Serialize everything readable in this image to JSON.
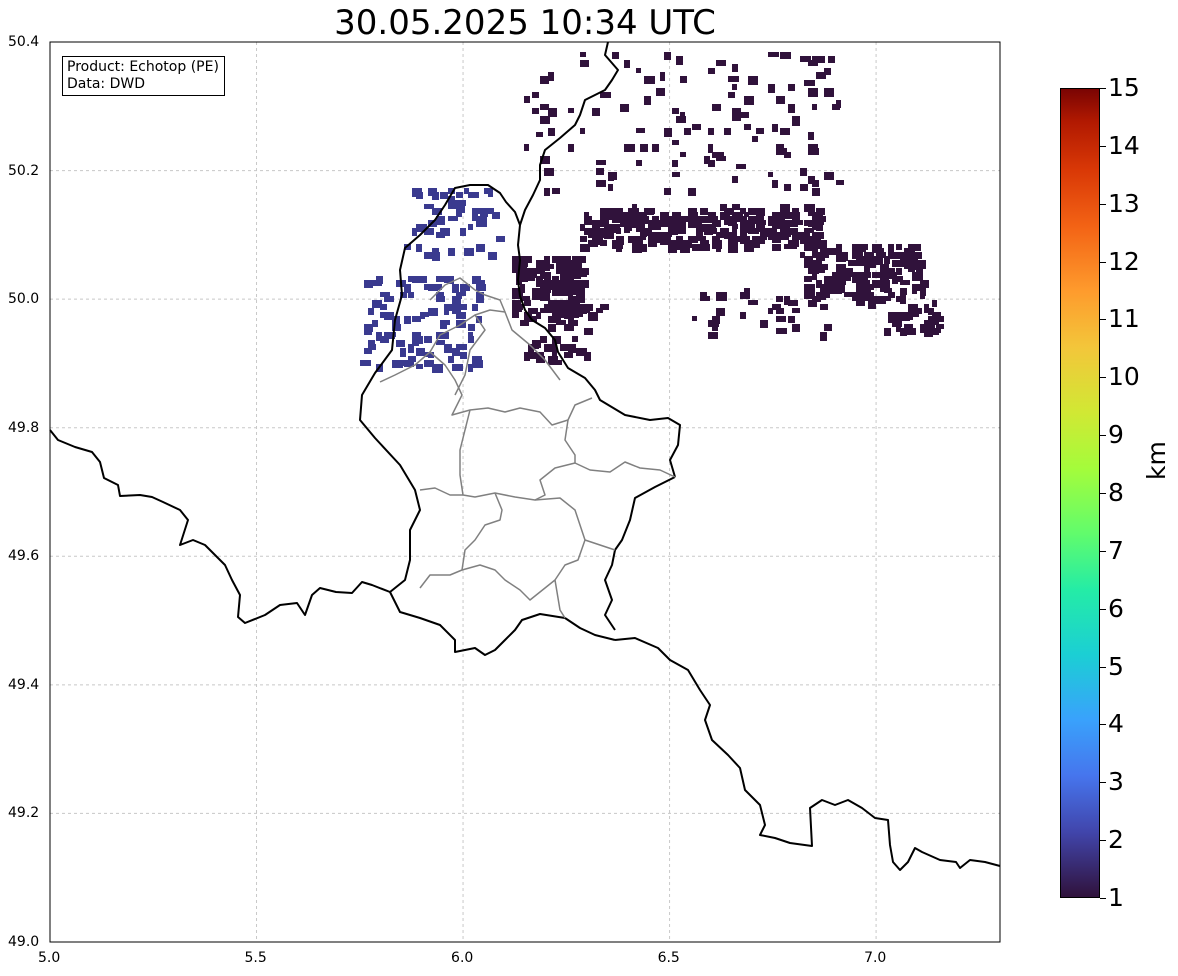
{
  "title": "30.05.2025 10:34 UTC",
  "info": {
    "product": "Product: Echotop (PE)",
    "data": "Data: DWD"
  },
  "map": {
    "lon_range": [
      5.0,
      7.3
    ],
    "lat_range": [
      49.0,
      50.4
    ],
    "x_ticks": [
      "5.0",
      "5.5",
      "6.0",
      "6.5",
      "7.0"
    ],
    "y_ticks": [
      "49.0",
      "49.2",
      "49.4",
      "49.6",
      "49.8",
      "50.0",
      "50.2",
      "50.4"
    ],
    "grid": true,
    "colors": {
      "echo_low": "#30123b",
      "echo_mid": "#3a3a8f",
      "border": "#000000",
      "canton": "#808080"
    }
  },
  "colorbar": {
    "label": "km",
    "ticks": [
      "1",
      "2",
      "3",
      "4",
      "5",
      "6",
      "7",
      "8",
      "9",
      "10",
      "11",
      "12",
      "13",
      "14",
      "15"
    ],
    "range": [
      1,
      15
    ],
    "colormap": "turbo"
  }
}
